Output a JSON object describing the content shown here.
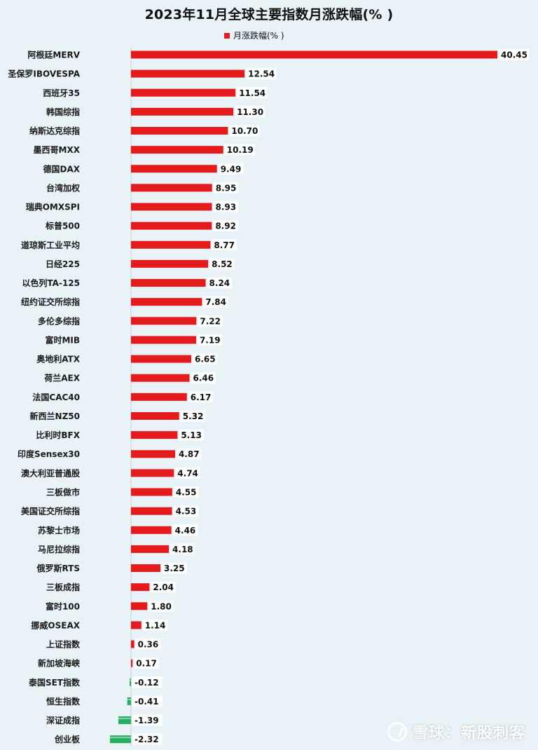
{
  "chart_data": {
    "type": "bar",
    "orientation": "horizontal",
    "title": "2023年11月全球主要指数月涨跌幅(% )",
    "legend": {
      "label": "月涨跌幅(% )",
      "position": "top"
    },
    "positive_color": "#e41a1c",
    "negative_color": "#27ae60",
    "categories": [
      "阿根廷MERV",
      "圣保罗IBOVESPA",
      "西班牙35",
      "韩国综指",
      "纳斯达克综指",
      "墨西哥MXX",
      "德国DAX",
      "台湾加权",
      "瑞典OMXSPI",
      "标普500",
      "道琼斯工业平均",
      "日经225",
      "以色列TA-125",
      "纽约证交所综指",
      "多伦多综指",
      "富时MIB",
      "奥地利ATX",
      "荷兰AEX",
      "法国CAC40",
      "新西兰NZ50",
      "比利时BFX",
      "印度Sensex30",
      "澳大利亚普通股",
      "三板做市",
      "美国证交所综指",
      "苏黎士市场",
      "马尼拉综指",
      "俄罗斯RTS",
      "三板成指",
      "富时100",
      "挪威OSEAX",
      "上证指数",
      "新加坡海峡",
      "泰国SET指数",
      "恒生指数",
      "深证成指",
      "创业板"
    ],
    "values": [
      40.45,
      12.54,
      11.54,
      11.3,
      10.7,
      10.19,
      9.49,
      8.95,
      8.93,
      8.92,
      8.77,
      8.52,
      8.24,
      7.84,
      7.22,
      7.19,
      6.65,
      6.46,
      6.17,
      5.32,
      5.13,
      4.87,
      4.74,
      4.55,
      4.53,
      4.46,
      4.18,
      3.25,
      2.04,
      1.8,
      1.14,
      0.36,
      0.17,
      -0.12,
      -0.41,
      -1.39,
      -2.32
    ],
    "value_labels": [
      "40.45",
      "12.54",
      "11.54",
      "11.30",
      "10.70",
      "10.19",
      "9.49",
      "8.95",
      "8.93",
      "8.92",
      "8.77",
      "8.52",
      "8.24",
      "7.84",
      "7.22",
      "7.19",
      "6.65",
      "6.46",
      "6.17",
      "5.32",
      "5.13",
      "4.87",
      "4.74",
      "4.55",
      "4.53",
      "4.46",
      "4.18",
      "3.25",
      "2.04",
      "1.80",
      "1.14",
      "0.36",
      "0.17",
      "-0.12",
      "-0.41",
      "-1.39",
      "-2.32"
    ],
    "xlim": [
      -2.32,
      40.45
    ],
    "grid": false
  },
  "watermark": {
    "brand": "雪球",
    "separator": "：",
    "author": "新股刺客"
  }
}
